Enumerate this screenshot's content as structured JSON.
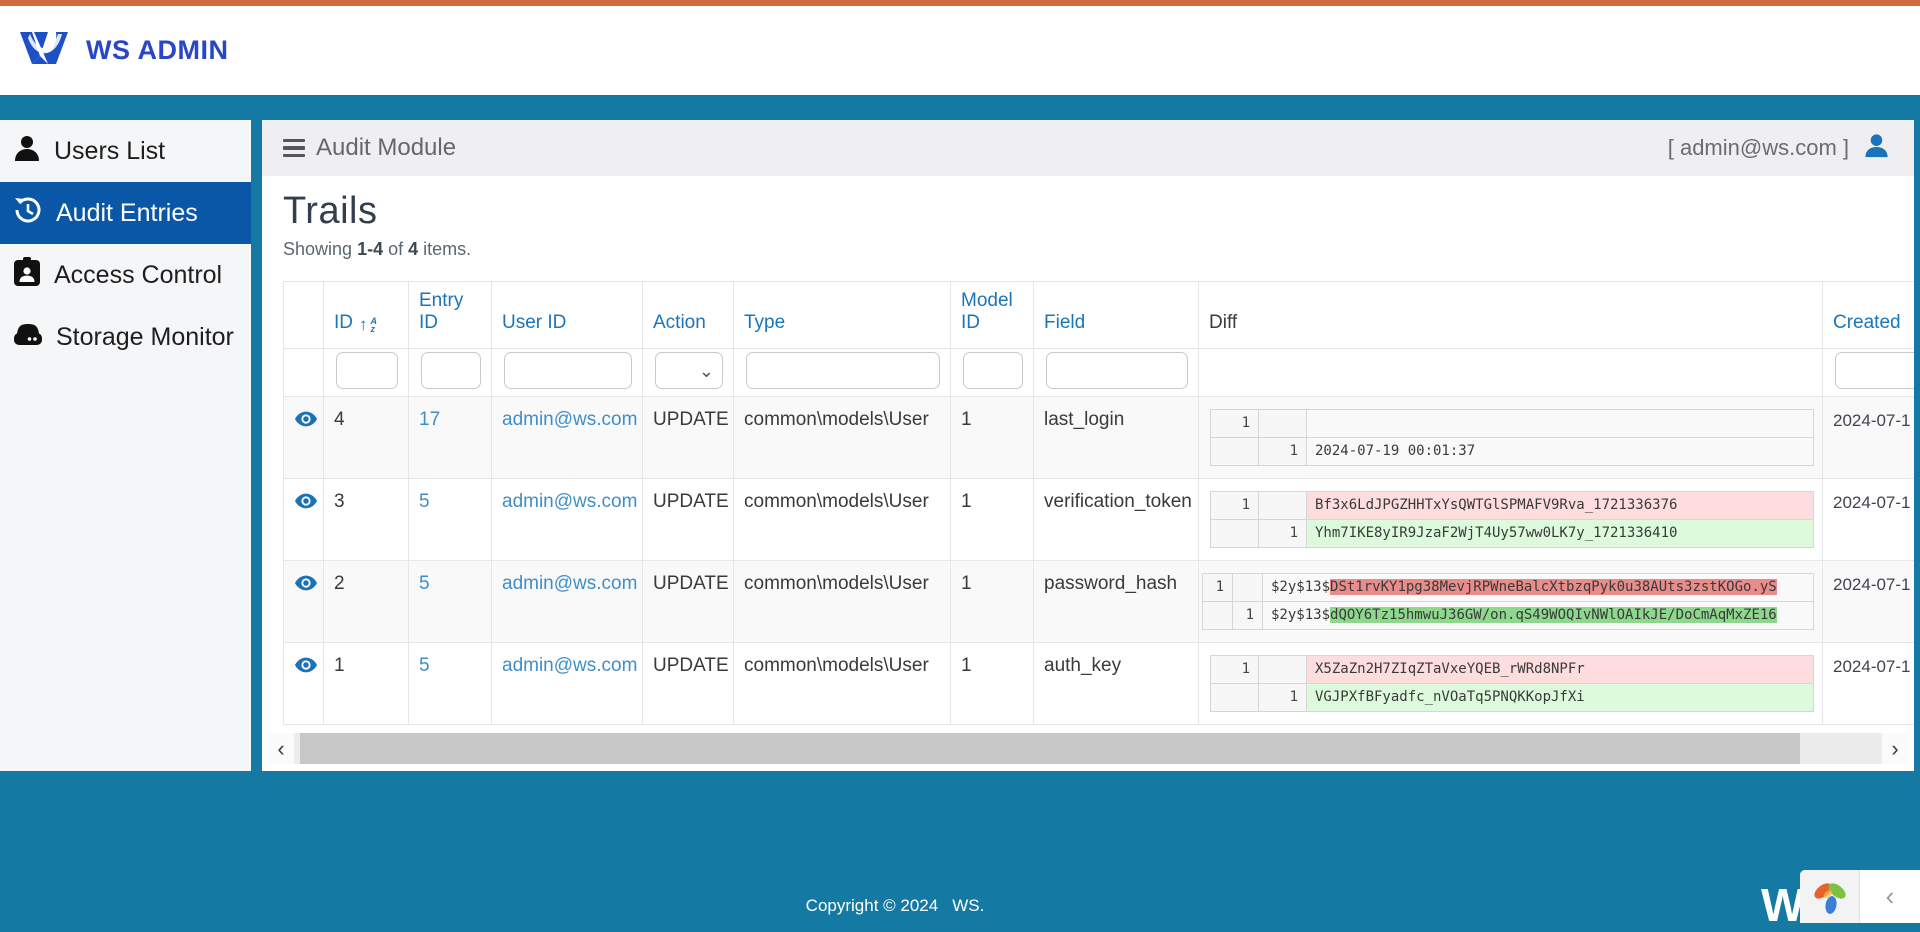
{
  "colors": {
    "accent_orange": "#d2683e",
    "teal_background": "#147aa3",
    "sidebar_active_blue": "#0a57a7",
    "brand_blue": "#2946c8",
    "header_link_blue": "#1a75ba",
    "cell_link_blue": "#3f8ec9",
    "diff_del_bg": "#fddddd",
    "diff_ins_bg": "#ddfadd",
    "diff_del_highlight": "#e98c8c",
    "diff_ins_highlight": "#8ed88e"
  },
  "icons": {
    "brand_logo": "ws-w-logo-icon",
    "menu": "hamburger-menu-icon",
    "topbar_user": "user-icon",
    "sidebar": [
      "user-icon",
      "history-icon",
      "id-badge-icon",
      "hdd-icon"
    ],
    "row_action": "eye-icon",
    "sort": "sort-alpha-asc-icon",
    "select_caret": "chevron-down-icon",
    "scroll_left": "chevron-left-icon",
    "scroll_right": "chevron-right-icon",
    "corner_logo": "petals-logo-icon",
    "corner_collapse": "chevron-left-icon"
  },
  "brand": {
    "text": "WS ADMIN"
  },
  "topbar": {
    "title": "Audit Module",
    "user": "[ admin@ws.com ]"
  },
  "sidebar": {
    "items": [
      {
        "label": "Users List",
        "active": false
      },
      {
        "label": "Audit Entries",
        "active": true
      },
      {
        "label": "Access Control",
        "active": false
      },
      {
        "label": "Storage Monitor",
        "active": false
      }
    ]
  },
  "page": {
    "title": "Trails",
    "summary": {
      "prefix": "Showing ",
      "range": "1-4",
      "of": " of ",
      "total": "4",
      "suffix": " items."
    }
  },
  "table": {
    "headers": [
      "",
      "ID",
      "Entry ID",
      "User ID",
      "Action",
      "Type",
      "Model ID",
      "Field",
      "Diff",
      "Created"
    ],
    "scroll": {
      "left_arrow": "‹",
      "right_arrow": "›"
    },
    "rows": [
      {
        "id": "4",
        "entry_id": "17",
        "user_id": "admin@ws.com",
        "action": "UPDATE",
        "type": "common\\models\\User",
        "model_id": "1",
        "field": "last_login",
        "created": "2024-07-1",
        "diff": {
          "narrow": false,
          "lines": [
            {
              "g1": "1",
              "g2": "",
              "kind": "del",
              "segments": []
            },
            {
              "g1": "",
              "g2": "1",
              "kind": "ins",
              "segments": [
                {
                  "text": "2024-07-19 00:01:37",
                  "hl": false
                }
              ]
            }
          ]
        }
      },
      {
        "id": "3",
        "entry_id": "5",
        "user_id": "admin@ws.com",
        "action": "UPDATE",
        "type": "common\\models\\User",
        "model_id": "1",
        "field": "verification_token",
        "created": "2024-07-1",
        "diff": {
          "narrow": false,
          "lines": [
            {
              "g1": "1",
              "g2": "",
              "kind": "del",
              "segments": [
                {
                  "text": "Bf3x6LdJPGZHHTxYsQWTGlSPMAFV9Rva_1721336376",
                  "hl": false
                }
              ]
            },
            {
              "g1": "",
              "g2": "1",
              "kind": "ins",
              "segments": [
                {
                  "text": "Yhm7IKE8yIR9JzaF2WjT4Uy57ww0LK7y_1721336410",
                  "hl": false
                }
              ]
            }
          ]
        }
      },
      {
        "id": "2",
        "entry_id": "5",
        "user_id": "admin@ws.com",
        "action": "UPDATE",
        "type": "common\\models\\User",
        "model_id": "1",
        "field": "password_hash",
        "created": "2024-07-1",
        "diff": {
          "narrow": true,
          "lines": [
            {
              "g1": "1",
              "g2": "",
              "kind": "del",
              "segments": [
                {
                  "text": "$2y$13$",
                  "hl": false
                },
                {
                  "text": "DSt1rvKY1pg38MevjRPWneBalcXtbzqPyk0u38AUts3zstKOGo.yS",
                  "hl": true
                }
              ]
            },
            {
              "g1": "",
              "g2": "1",
              "kind": "ins",
              "segments": [
                {
                  "text": "$2y$13$",
                  "hl": false
                },
                {
                  "text": "dQOY6Tz15hmwuJ36GW/on.qS49WOQIvNWlOAIkJE/DoCmAqMxZE16",
                  "hl": true
                }
              ]
            }
          ]
        }
      },
      {
        "id": "1",
        "entry_id": "5",
        "user_id": "admin@ws.com",
        "action": "UPDATE",
        "type": "common\\models\\User",
        "model_id": "1",
        "field": "auth_key",
        "created": "2024-07-1",
        "diff": {
          "narrow": false,
          "lines": [
            {
              "g1": "1",
              "g2": "",
              "kind": "del",
              "segments": [
                {
                  "text": "X5ZaZn2H7ZIqZTaVxeYQEB_rWRd8NPFr",
                  "hl": false
                }
              ]
            },
            {
              "g1": "",
              "g2": "1",
              "kind": "ins",
              "segments": [
                {
                  "text": "VGJPXfBFyadfc_nVOaTq5PNQKKopJfXi",
                  "hl": false
                }
              ]
            }
          ]
        }
      }
    ]
  },
  "footer": {
    "copyright": "Copyright © 2024",
    "brand": "WS.",
    "watermark": "W"
  }
}
